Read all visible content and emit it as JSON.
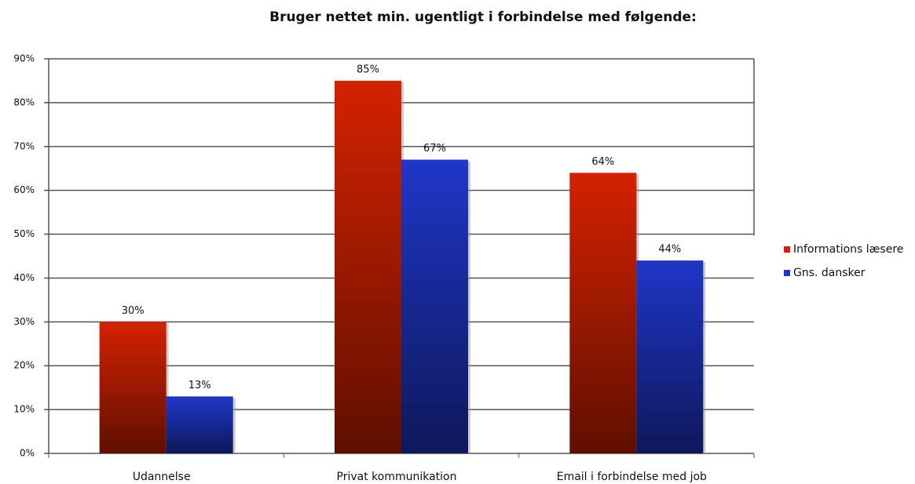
{
  "chart_data": {
    "type": "bar",
    "title": "Bruger nettet min. ugentligt i forbindelse med følgende:",
    "categories": [
      "Udannelse",
      "Privat kommunikation",
      "Email i forbindelse med job"
    ],
    "series": [
      {
        "name": "Informations læsere",
        "color": "#d42200",
        "values": [
          30,
          85,
          64
        ],
        "value_labels": [
          "30%",
          "85%",
          "64%"
        ]
      },
      {
        "name": "Gns. dansker",
        "color": "#1f36c8",
        "values": [
          13,
          67,
          44
        ],
        "value_labels": [
          "13%",
          "67%",
          "44%"
        ]
      }
    ],
    "ylim": [
      0,
      90
    ],
    "yticks": [
      {
        "value": 0,
        "label": "0%"
      },
      {
        "value": 10,
        "label": "10%"
      },
      {
        "value": 20,
        "label": "20%"
      },
      {
        "value": 30,
        "label": "30%"
      },
      {
        "value": 40,
        "label": "40%"
      },
      {
        "value": 50,
        "label": "50%"
      },
      {
        "value": 60,
        "label": "60%"
      },
      {
        "value": 70,
        "label": "70%"
      },
      {
        "value": 80,
        "label": "80%"
      },
      {
        "value": 90,
        "label": "90%"
      }
    ],
    "grid": true,
    "legend": "right"
  }
}
